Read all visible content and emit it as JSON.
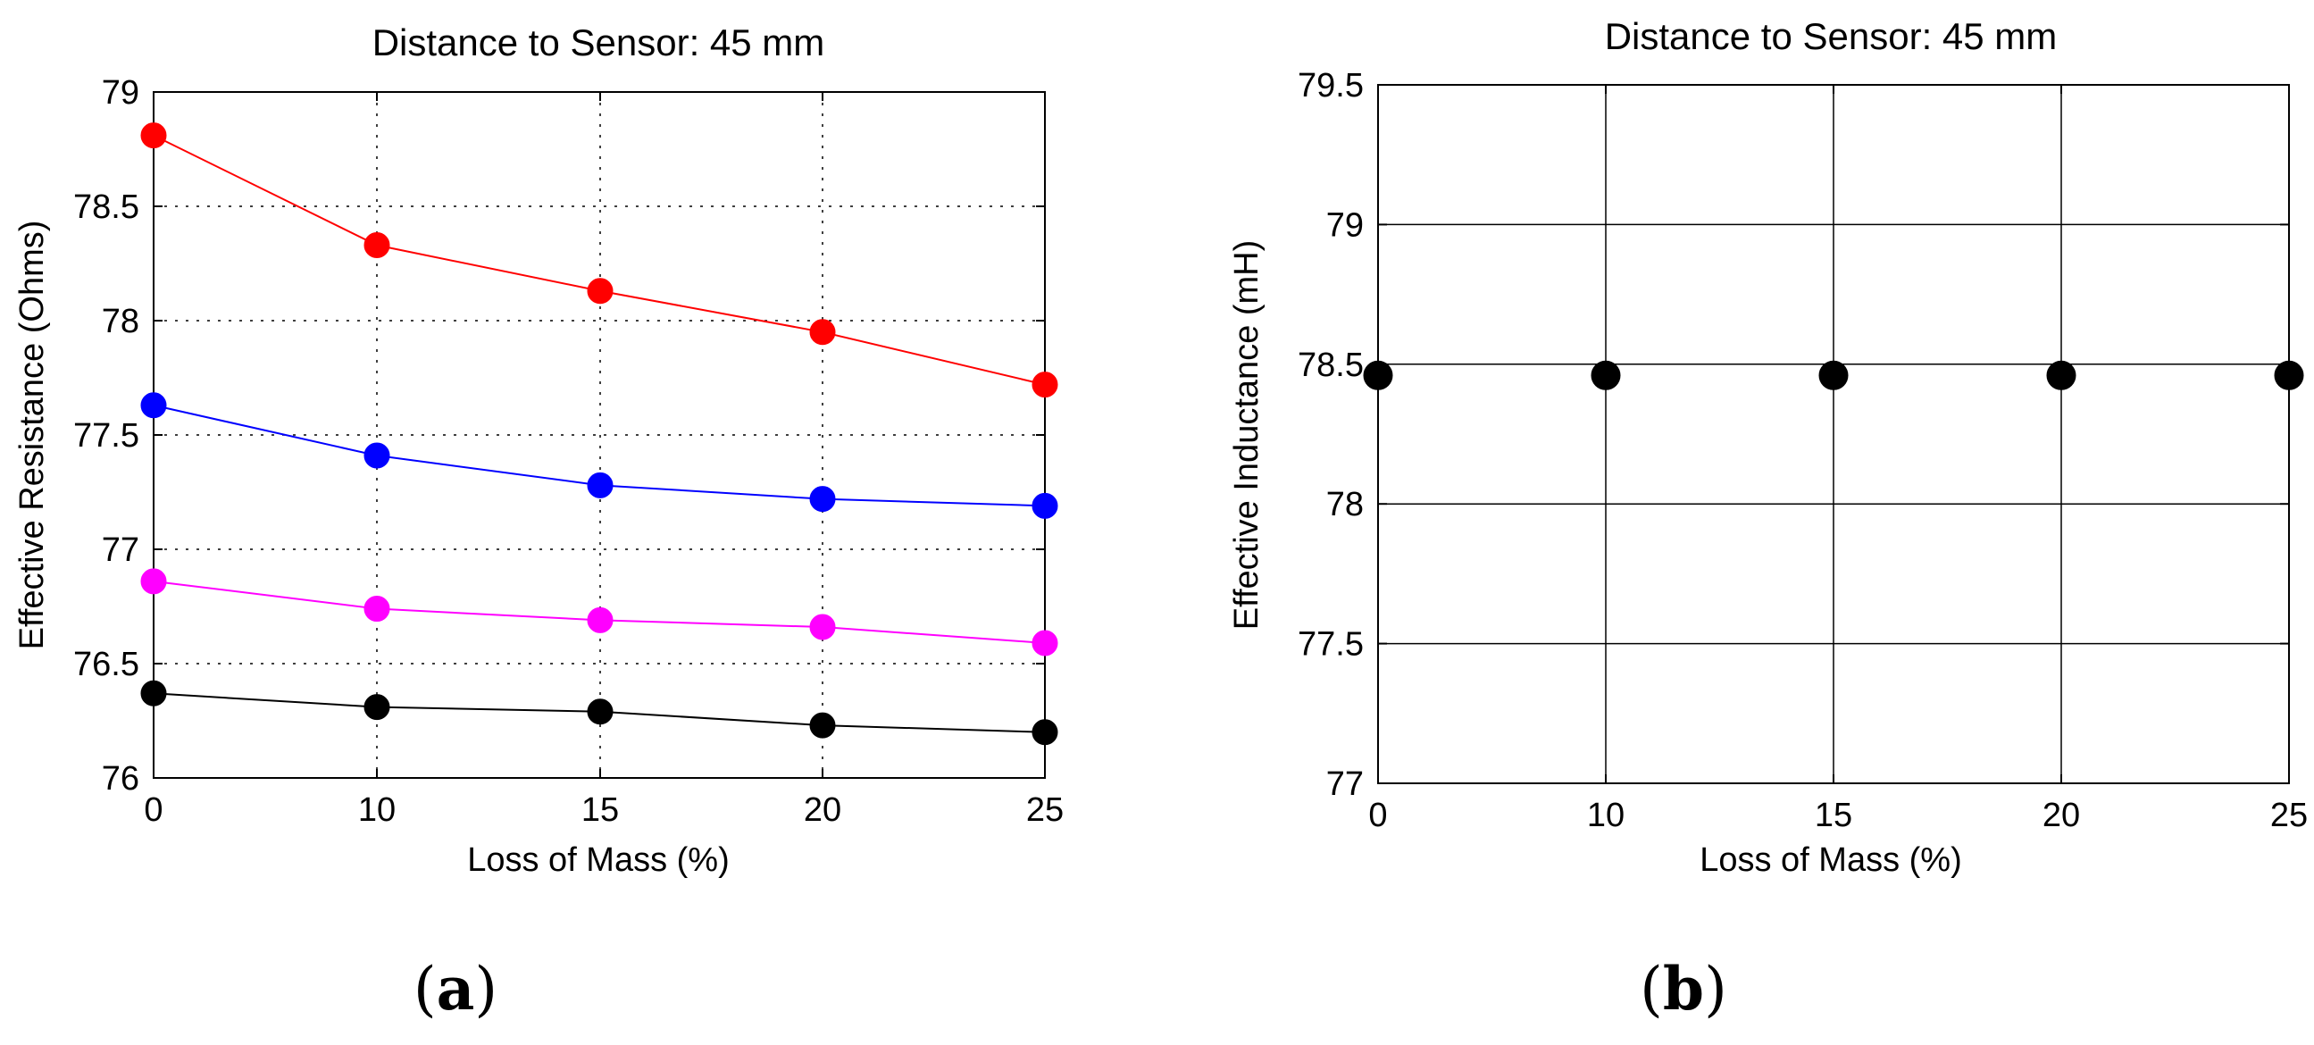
{
  "chart_data": [
    {
      "type": "line",
      "panel": "a",
      "caption_open": "(",
      "caption_letter": "a",
      "caption_close": ")",
      "title": "Distance to Sensor: 45 mm",
      "xlabel": "Loss of Mass (%)",
      "ylabel": "Effective Resistance (Ohms)",
      "x": [
        0,
        10,
        15,
        20,
        25
      ],
      "xlim": [
        0,
        25
      ],
      "ylim": [
        76,
        79
      ],
      "xticks": [
        "0",
        "10",
        "15",
        "20",
        "25"
      ],
      "yticks": [
        76,
        76.5,
        77,
        77.5,
        78,
        78.5,
        79
      ],
      "ytick_labels": [
        "76",
        "76.5",
        "77",
        "77.5",
        "78",
        "78.5",
        "79"
      ],
      "grid": "dotted",
      "series": [
        {
          "name": "red",
          "color": "#ff0000",
          "values": [
            78.81,
            78.33,
            78.13,
            77.95,
            77.72
          ]
        },
        {
          "name": "blue",
          "color": "#0000ff",
          "values": [
            77.63,
            77.41,
            77.28,
            77.22,
            77.19
          ]
        },
        {
          "name": "magenta",
          "color": "#ff00ff",
          "values": [
            76.86,
            76.74,
            76.69,
            76.66,
            76.59
          ]
        },
        {
          "name": "black",
          "color": "#000000",
          "values": [
            76.37,
            76.31,
            76.29,
            76.23,
            76.2
          ]
        }
      ]
    },
    {
      "type": "scatter",
      "panel": "b",
      "caption_open": "(",
      "caption_letter": "b",
      "caption_close": ")",
      "title": "Distance to Sensor: 45 mm",
      "xlabel": "Loss of Mass (%)",
      "ylabel": "Effective Inductance (mH)",
      "x": [
        0,
        10,
        15,
        20,
        25
      ],
      "xlim": [
        0,
        25
      ],
      "ylim": [
        77,
        79.5
      ],
      "xticks": [
        "0",
        "10",
        "15",
        "20",
        "25"
      ],
      "yticks": [
        77,
        77.5,
        78,
        78.5,
        79,
        79.5
      ],
      "ytick_labels": [
        "77",
        "77.5",
        "78",
        "78.5",
        "79",
        "79.5"
      ],
      "grid": "solid",
      "series": [
        {
          "name": "black",
          "color": "#000000",
          "values": [
            78.46,
            78.46,
            78.46,
            78.46,
            78.46
          ]
        }
      ]
    }
  ]
}
